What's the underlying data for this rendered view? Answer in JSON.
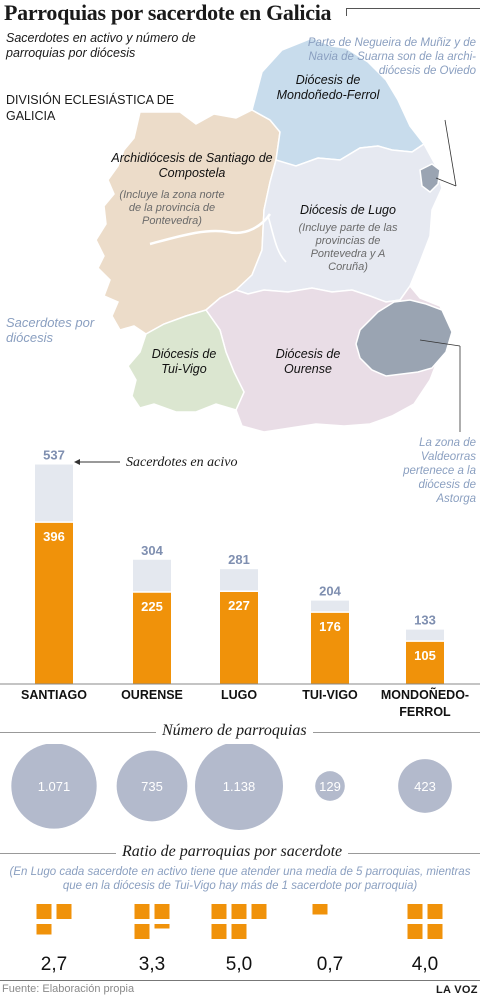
{
  "title": "Parroquias por sacerdote en Galicia",
  "subtitle": "Sacerdotes en activo y número de parroquias por diócesis",
  "division_label": "DIVISIÓN ECLESIÁSTICA DE GALICIA",
  "notes": {
    "oviedo": "Parte de Negueira de Muñiz y de Navia de Suarna son de la archi-diócesis de Oviedo",
    "astorga": "La zona de Valdeorras pertenece a la diócesis de Astorga"
  },
  "map": {
    "mondonedo": "Diócesis de Mondoñedo-Ferrol",
    "santiago": "Archidiócesis de Santiago de Compostela",
    "santiago_note": "(Incluye la zona norte de la provincia de Pontevedra)",
    "lugo": "Diócesis de Lugo",
    "lugo_note": "(Incluye parte de las provincias de Pontevedra y A Coruña)",
    "tui": "Diócesis de Tui-Vigo",
    "ourense": "Diócesis de Ourense",
    "colors": {
      "santiago": "#ecdcc9",
      "mondonedo": "#c8dcec",
      "lugo": "#e6e9f1",
      "ourense": "#e9dde6",
      "tui": "#dbe6d0",
      "oviedo": "#9aa4b2",
      "astorga": "#9aa4b2"
    }
  },
  "legend": {
    "sacerdotes_diocesis": "Sacerdotes por diócesis",
    "sacerdotes_activo": "Sacerdotes en acivo"
  },
  "sections": {
    "parroquias": "Número de parroquias",
    "ratio": "Ratio de parroquias por sacerdote",
    "ratio_note": "(En Lugo cada sacerdote en activo tiene que atender una media de 5 parroquias, mientras que en la diócesis de Tui-Vigo hay más de 1 sacerdote por parroquia)"
  },
  "chart_data": {
    "type": "bar",
    "categories": [
      "SANTIAGO",
      "OURENSE",
      "LUGO",
      "TUI-VIGO",
      "MONDOÑEDO-FERROL"
    ],
    "series": [
      {
        "name": "Sacerdotes por diócesis",
        "values": [
          537,
          304,
          281,
          204,
          133
        ],
        "labels": [
          "537",
          "304",
          "281",
          "204",
          "133"
        ]
      },
      {
        "name": "Sacerdotes en acivo",
        "values": [
          396,
          225,
          227,
          176,
          105
        ],
        "labels": [
          "396",
          "225",
          "227",
          "176",
          "105"
        ]
      }
    ],
    "parroquias": {
      "values": [
        1071,
        735,
        1138,
        129,
        423
      ],
      "labels": [
        "1.071",
        "735",
        "1.138",
        "129",
        "423"
      ]
    },
    "ratio": {
      "values": [
        2.7,
        3.3,
        5.0,
        0.7,
        4.0
      ],
      "labels": [
        "2,7",
        "3,3",
        "5,0",
        "0,7",
        "4,0"
      ]
    },
    "colors": {
      "total": "#e4e8ef",
      "active": "#f0920a",
      "circle": "#b3bacc",
      "total_label": "#7f8fb0"
    }
  },
  "source": "Fuente: Elaboración propia",
  "brand": "LA VOZ"
}
